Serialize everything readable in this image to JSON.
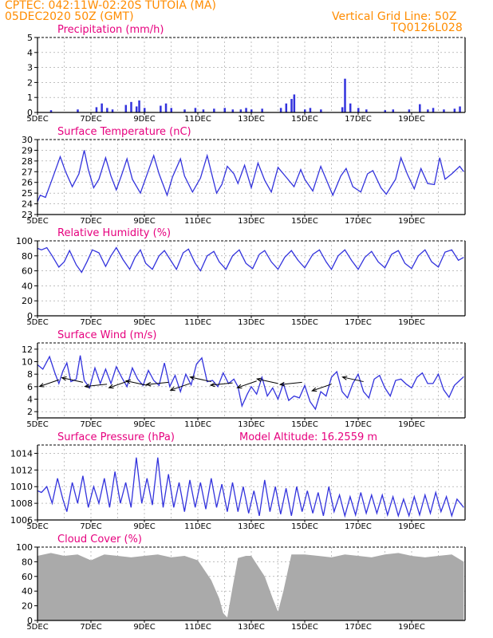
{
  "header": {
    "line1_left": "CPTEC:   042:11W-02:20S   TUTOIA (MA)",
    "line2_left": "05DEC2020 50Z (GMT)",
    "line1_right": "Vertical Grid Line: 50Z",
    "line2_right": "TQ0126L028"
  },
  "model_altitude": "Model Altitude: 16.2559 m",
  "x_tick_labels": [
    "5DEC",
    "7DEC",
    "9DEC",
    "11DEC",
    "13DEC",
    "15DEC",
    "17DEC",
    "19DEC"
  ],
  "colors": {
    "line": "#3333dd",
    "title": "#e6007e",
    "header": "#ff8c00",
    "cloud": "#aaaaaa",
    "wind_arrow": "#000000"
  },
  "chart_data": [
    {
      "type": "bar",
      "title": "Precipitation (mm/h)",
      "ylim": [
        0,
        5
      ],
      "yticks": [
        0,
        1,
        2,
        3,
        4,
        5
      ],
      "x_unit": "days since 5DEC",
      "x": [
        0.5,
        1.5,
        2.2,
        2.4,
        2.6,
        2.8,
        3.3,
        3.5,
        3.7,
        3.8,
        4.0,
        4.6,
        4.8,
        5.0,
        5.5,
        5.9,
        6.2,
        6.6,
        7.0,
        7.3,
        7.6,
        7.8,
        8.0,
        8.4,
        9.1,
        9.3,
        9.5,
        9.6,
        10.0,
        10.2,
        10.6,
        11.4,
        11.5,
        11.7,
        12.0,
        12.3,
        13.0,
        13.3,
        13.9,
        14.3,
        14.6,
        14.8,
        15.2,
        15.6,
        15.8
      ],
      "values": [
        0.15,
        0.2,
        0.35,
        0.6,
        0.3,
        0.2,
        0.5,
        0.7,
        0.4,
        0.8,
        0.3,
        0.45,
        0.6,
        0.3,
        0.2,
        0.3,
        0.2,
        0.25,
        0.3,
        0.2,
        0.2,
        0.3,
        0.2,
        0.25,
        0.3,
        0.6,
        0.9,
        1.2,
        0.2,
        0.3,
        0.2,
        0.35,
        2.25,
        0.6,
        0.3,
        0.2,
        0.15,
        0.2,
        0.2,
        0.55,
        0.2,
        0.3,
        0.2,
        0.25,
        0.4
      ]
    },
    {
      "type": "line",
      "title": "Surface Temperature (nC)",
      "ylim": [
        23,
        30
      ],
      "yticks": [
        23,
        24,
        25,
        26,
        27,
        28,
        29,
        30
      ],
      "x_unit": "days since 5DEC",
      "x": [
        0,
        0.1,
        0.3,
        0.55,
        0.85,
        1.05,
        1.3,
        1.55,
        1.75,
        1.9,
        2.1,
        2.3,
        2.55,
        2.75,
        2.95,
        3.15,
        3.35,
        3.55,
        3.85,
        4.05,
        4.35,
        4.55,
        4.85,
        5.05,
        5.35,
        5.5,
        5.8,
        6.1,
        6.35,
        6.55,
        6.7,
        6.9,
        7.1,
        7.35,
        7.5,
        7.75,
        8.0,
        8.25,
        8.5,
        8.75,
        9.0,
        9.3,
        9.6,
        9.85,
        10.0,
        10.3,
        10.6,
        10.85,
        11.05,
        11.35,
        11.55,
        11.8,
        12.1,
        12.35,
        12.55,
        12.85,
        13.05,
        13.4,
        13.6,
        13.85,
        14.1,
        14.35,
        14.6,
        14.85,
        15.05,
        15.25,
        15.5,
        15.8,
        15.95
      ],
      "values": [
        24.2,
        24.8,
        24.6,
        26.3,
        28.4,
        27.0,
        25.6,
        26.8,
        29.0,
        27.2,
        25.5,
        26.3,
        28.3,
        26.6,
        25.3,
        26.7,
        28.2,
        26.3,
        25.0,
        26.4,
        28.5,
        26.8,
        24.8,
        26.5,
        28.2,
        26.6,
        25.1,
        26.4,
        28.5,
        26.5,
        25.0,
        25.8,
        27.5,
        26.8,
        25.9,
        27.6,
        25.5,
        27.8,
        26.2,
        25.1,
        27.4,
        26.5,
        25.6,
        27.2,
        26.3,
        25.2,
        27.5,
        26.0,
        24.8,
        26.6,
        27.3,
        25.6,
        25.1,
        26.8,
        27.1,
        25.5,
        24.9,
        26.3,
        28.3,
        26.7,
        25.4,
        27.3,
        25.9,
        25.8,
        28.3,
        26.3,
        26.8,
        27.5,
        27.0
      ]
    },
    {
      "type": "line",
      "title": "Relative Humidity (%)",
      "ylim": [
        0,
        100
      ],
      "yticks": [
        0,
        20,
        40,
        60,
        80,
        100
      ],
      "x_unit": "days since 5DEC",
      "x": [
        0,
        0.15,
        0.35,
        0.55,
        0.8,
        1.0,
        1.2,
        1.45,
        1.65,
        1.85,
        2.05,
        2.3,
        2.55,
        2.75,
        2.95,
        3.2,
        3.45,
        3.65,
        3.85,
        4.05,
        4.3,
        4.55,
        4.75,
        4.95,
        5.2,
        5.45,
        5.65,
        5.9,
        6.1,
        6.35,
        6.6,
        6.8,
        7.05,
        7.3,
        7.55,
        7.8,
        8.05,
        8.3,
        8.5,
        8.75,
        9.0,
        9.25,
        9.5,
        9.75,
        10.0,
        10.3,
        10.55,
        10.8,
        11.0,
        11.25,
        11.5,
        11.75,
        12.0,
        12.25,
        12.5,
        12.75,
        13.0,
        13.25,
        13.5,
        13.75,
        14.0,
        14.25,
        14.5,
        14.75,
        15.0,
        15.25,
        15.5,
        15.75,
        15.95
      ],
      "values": [
        90,
        88,
        91,
        80,
        65,
        72,
        87,
        68,
        58,
        72,
        88,
        84,
        66,
        80,
        91,
        75,
        62,
        78,
        88,
        70,
        62,
        80,
        87,
        76,
        62,
        84,
        89,
        70,
        60,
        80,
        86,
        72,
        62,
        80,
        88,
        70,
        63,
        82,
        87,
        72,
        62,
        78,
        87,
        74,
        64,
        82,
        88,
        72,
        62,
        80,
        88,
        74,
        62,
        78,
        86,
        72,
        64,
        82,
        87,
        70,
        63,
        80,
        88,
        72,
        65,
        85,
        88,
        74,
        78
      ]
    },
    {
      "type": "line",
      "title": "Surface Wind (m/s)",
      "ylim": [
        1,
        13
      ],
      "yticks": [
        2,
        4,
        6,
        8,
        10,
        12
      ],
      "x_unit": "days since 5DEC",
      "x": [
        0,
        0.2,
        0.45,
        0.65,
        0.8,
        0.95,
        1.1,
        1.25,
        1.45,
        1.6,
        1.75,
        1.95,
        2.15,
        2.35,
        2.55,
        2.75,
        2.95,
        3.15,
        3.35,
        3.55,
        3.75,
        3.95,
        4.15,
        4.35,
        4.55,
        4.75,
        4.95,
        5.15,
        5.35,
        5.55,
        5.75,
        5.95,
        6.15,
        6.35,
        6.55,
        6.75,
        6.95,
        7.15,
        7.35,
        7.5,
        7.65,
        7.85,
        8.0,
        8.2,
        8.4,
        8.6,
        8.8,
        9.0,
        9.2,
        9.4,
        9.6,
        9.8,
        10.0,
        10.2,
        10.4,
        10.6,
        10.8,
        11.0,
        11.2,
        11.4,
        11.6,
        11.8,
        12.0,
        12.2,
        12.4,
        12.6,
        12.8,
        13.0,
        13.2,
        13.4,
        13.6,
        13.8,
        14.0,
        14.2,
        14.4,
        14.6,
        14.8,
        15.0,
        15.2,
        15.4,
        15.6,
        15.8,
        15.95
      ],
      "values": [
        9.5,
        8.8,
        10.8,
        8.2,
        6.5,
        8.5,
        9.8,
        6.8,
        7.2,
        11.0,
        7.0,
        5.8,
        9.0,
        6.5,
        8.8,
        6.5,
        9.2,
        7.5,
        6.0,
        9.0,
        7.2,
        6.2,
        8.6,
        7.0,
        6.2,
        9.8,
        6.0,
        7.8,
        5.2,
        8.0,
        6.3,
        9.6,
        10.6,
        6.8,
        7.0,
        6.0,
        8.2,
        6.5,
        7.2,
        6.0,
        2.9,
        4.8,
        6.0,
        4.8,
        7.5,
        4.5,
        5.8,
        4.0,
        6.5,
        3.8,
        4.5,
        4.2,
        6.2,
        3.6,
        2.4,
        5.2,
        4.5,
        7.5,
        8.4,
        5.2,
        4.2,
        6.5,
        8.0,
        5.2,
        4.2,
        7.2,
        7.8,
        5.8,
        4.5,
        7.0,
        7.2,
        6.4,
        5.8,
        7.5,
        8.2,
        6.5,
        6.5,
        8.0,
        5.5,
        4.3,
        6.2,
        7.0,
        7.6
      ]
    },
    {
      "type": "line",
      "title": "Surface Pressure (hPa)",
      "ylim": [
        1006,
        1015
      ],
      "yticks": [
        1006,
        1008,
        1010,
        1012,
        1014
      ],
      "x_unit": "days since 5DEC",
      "x": [
        0,
        0.15,
        0.35,
        0.55,
        0.75,
        0.95,
        1.1,
        1.3,
        1.5,
        1.7,
        1.9,
        2.1,
        2.3,
        2.5,
        2.7,
        2.9,
        3.1,
        3.3,
        3.5,
        3.7,
        3.9,
        4.1,
        4.3,
        4.5,
        4.7,
        4.9,
        5.1,
        5.3,
        5.5,
        5.7,
        5.9,
        6.1,
        6.3,
        6.5,
        6.7,
        6.9,
        7.1,
        7.3,
        7.5,
        7.7,
        7.9,
        8.1,
        8.3,
        8.5,
        8.7,
        8.9,
        9.1,
        9.3,
        9.5,
        9.7,
        9.9,
        10.1,
        10.3,
        10.5,
        10.7,
        10.9,
        11.1,
        11.3,
        11.5,
        11.7,
        11.9,
        12.1,
        12.3,
        12.5,
        12.7,
        12.9,
        13.1,
        13.3,
        13.5,
        13.7,
        13.9,
        14.1,
        14.3,
        14.5,
        14.7,
        14.9,
        15.1,
        15.3,
        15.5,
        15.7,
        15.95
      ],
      "values": [
        1009.5,
        1009.3,
        1010.0,
        1008.0,
        1011.0,
        1008.5,
        1007.0,
        1010.5,
        1008.0,
        1011.3,
        1007.5,
        1010.0,
        1008.0,
        1011.0,
        1007.5,
        1011.8,
        1008.0,
        1010.5,
        1007.5,
        1013.5,
        1008.0,
        1011.0,
        1007.8,
        1013.5,
        1007.5,
        1011.5,
        1007.5,
        1010.5,
        1007.0,
        1010.8,
        1007.5,
        1010.5,
        1007.3,
        1011.0,
        1007.5,
        1010.3,
        1007.0,
        1010.5,
        1007.0,
        1010.0,
        1006.8,
        1009.5,
        1006.5,
        1010.8,
        1007.0,
        1010.0,
        1006.7,
        1009.8,
        1006.5,
        1010.0,
        1007.0,
        1009.5,
        1006.8,
        1009.3,
        1006.5,
        1010.0,
        1007.0,
        1009.0,
        1006.5,
        1008.8,
        1006.6,
        1009.3,
        1006.8,
        1009.0,
        1006.8,
        1009.0,
        1006.6,
        1008.8,
        1006.5,
        1008.5,
        1006.5,
        1008.8,
        1006.6,
        1009.0,
        1006.8,
        1009.3,
        1007.0,
        1008.8,
        1006.5,
        1008.5,
        1007.5
      ]
    },
    {
      "type": "bar",
      "title": "Cloud Cover (%)",
      "ylim": [
        0,
        100
      ],
      "yticks": [
        0,
        20,
        40,
        60,
        80,
        100
      ],
      "x_unit": "days since 5DEC",
      "x": [
        0,
        0.5,
        1.0,
        1.5,
        2.0,
        2.5,
        3.0,
        3.5,
        4.0,
        4.5,
        5.0,
        5.5,
        6.0,
        6.5,
        6.8,
        6.95,
        7.1,
        7.3,
        7.5,
        7.8,
        8.0,
        8.5,
        8.8,
        9.0,
        9.2,
        9.5,
        10.0,
        10.5,
        11.0,
        11.5,
        12.0,
        12.5,
        13.0,
        13.5,
        14.0,
        14.5,
        15.0,
        15.5,
        15.95
      ],
      "values": [
        88,
        92,
        88,
        90,
        82,
        90,
        88,
        86,
        88,
        90,
        86,
        88,
        82,
        55,
        30,
        10,
        4,
        45,
        85,
        88,
        88,
        60,
        30,
        12,
        40,
        90,
        90,
        88,
        86,
        90,
        88,
        86,
        90,
        92,
        88,
        86,
        88,
        90,
        80
      ]
    }
  ]
}
